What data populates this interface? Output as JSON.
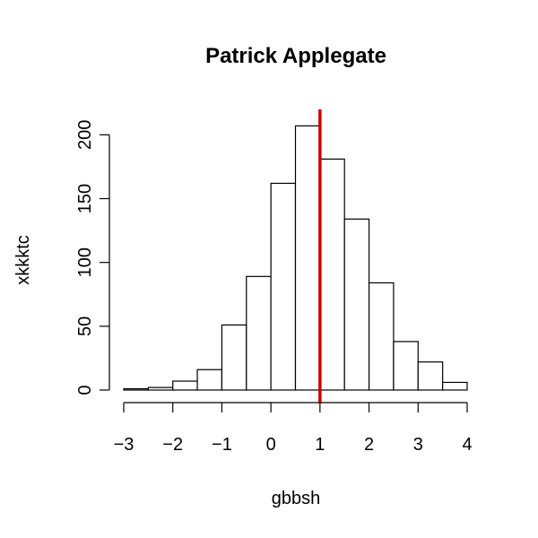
{
  "chart_data": {
    "type": "histogram",
    "title": "Patrick Applegate",
    "xlabel": "gbbsh",
    "ylabel": "xkkktc",
    "bin_edges": [
      -3,
      -2.5,
      -2,
      -1.5,
      -1,
      -0.5,
      0,
      0.5,
      1,
      1.5,
      2,
      2.5,
      3,
      3.5,
      4
    ],
    "counts": [
      1,
      2,
      7,
      16,
      51,
      89,
      162,
      207,
      181,
      134,
      84,
      38,
      22,
      6
    ],
    "xlim": [
      -3,
      4
    ],
    "ylim": [
      0,
      215
    ],
    "x_ticks": [
      -3,
      -2,
      -1,
      0,
      1,
      2,
      3,
      4
    ],
    "x_tick_labels": [
      "−3",
      "−2",
      "−1",
      "0",
      "1",
      "2",
      "3",
      "4"
    ],
    "y_ticks": [
      0,
      50,
      100,
      150,
      200
    ],
    "y_tick_labels": [
      "0",
      "50",
      "100",
      "150",
      "200"
    ],
    "vline": {
      "x": 1,
      "color": "#cc0000"
    },
    "bar_fill": "#ffffff",
    "bar_stroke": "#000000",
    "grid": false,
    "legend": "none"
  }
}
